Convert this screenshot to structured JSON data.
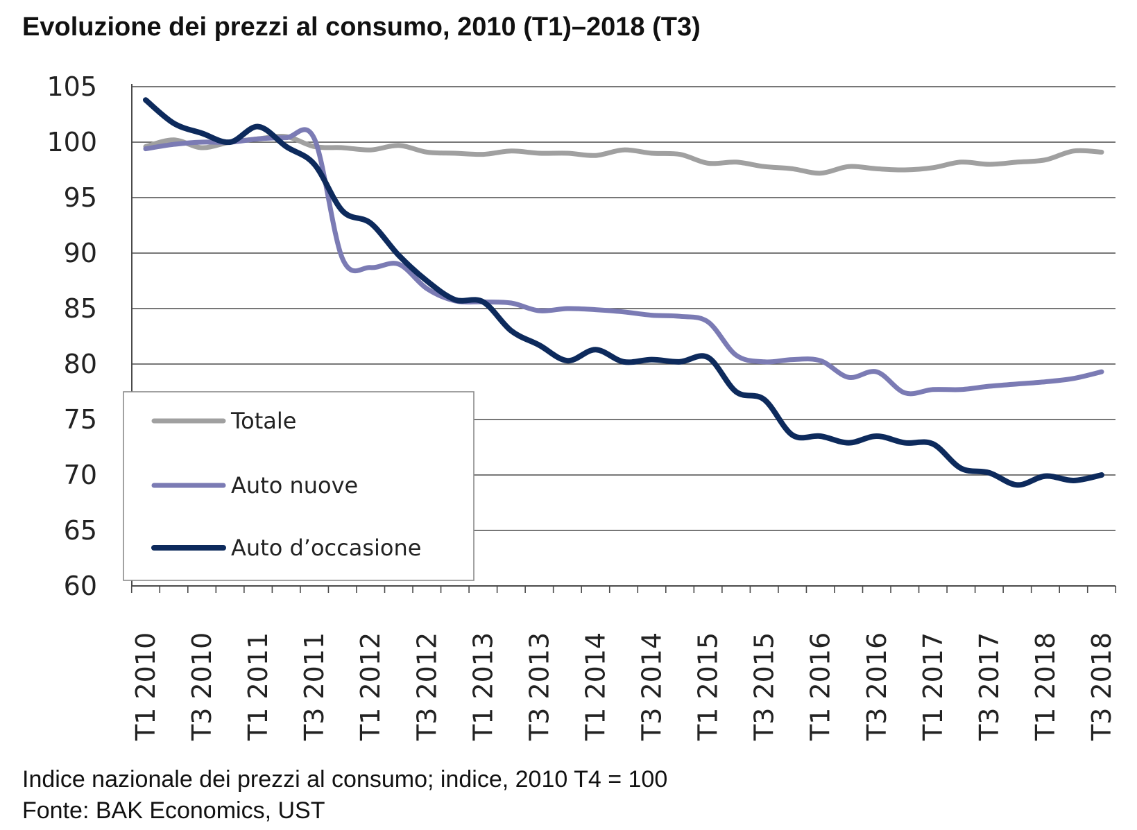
{
  "chart_data": {
    "type": "line",
    "title": "Evoluzione dei prezzi al consumo, 2010 (T1)–2018 (T3)",
    "xlabel": "",
    "ylabel": "",
    "ylim": [
      60,
      105
    ],
    "yticks": [
      60,
      65,
      70,
      75,
      80,
      85,
      90,
      95,
      100,
      105
    ],
    "x": [
      "T1 2010",
      "T2 2010",
      "T3 2010",
      "T4 2010",
      "T1 2011",
      "T2 2011",
      "T3 2011",
      "T4 2011",
      "T1 2012",
      "T2 2012",
      "T3 2012",
      "T4 2012",
      "T1 2013",
      "T2 2013",
      "T3 2013",
      "T4 2013",
      "T1 2014",
      "T2 2014",
      "T3 2014",
      "T4 2014",
      "T1 2015",
      "T2 2015",
      "T3 2015",
      "T4 2015",
      "T1 2016",
      "T2 2016",
      "T3 2016",
      "T4 2016",
      "T1 2017",
      "T2 2017",
      "T3 2017",
      "T4 2017",
      "T1 2018",
      "T2 2018",
      "T3 2018"
    ],
    "x_tick_labels": [
      "T1 2010",
      "T3 2010",
      "T1 2011",
      "T3 2011",
      "T1 2012",
      "T3 2012",
      "T1 2013",
      "T3 2013",
      "T1 2014",
      "T3 2014",
      "T1 2015",
      "T3 2015",
      "T1 2016",
      "T3 2016",
      "T1 2017",
      "T3 2017",
      "T1 2018",
      "T3 2018"
    ],
    "grid": true,
    "legend_position": "bottom-left",
    "series": [
      {
        "name": "Totale",
        "color": "#a0a0a0",
        "values": [
          99.6,
          100.2,
          99.5,
          100.0,
          100.3,
          100.5,
          99.6,
          99.5,
          99.3,
          99.7,
          99.1,
          99.0,
          98.9,
          99.2,
          99.0,
          99.0,
          98.8,
          99.3,
          99.0,
          98.9,
          98.1,
          98.2,
          97.8,
          97.6,
          97.2,
          97.8,
          97.6,
          97.5,
          97.7,
          98.2,
          98.0,
          98.2,
          98.4,
          99.2,
          99.1
        ]
      },
      {
        "name": "Auto nuove",
        "color": "#7b7bb4",
        "values": [
          99.4,
          99.8,
          100.0,
          100.0,
          100.3,
          100.4,
          100.3,
          89.5,
          88.7,
          89.0,
          86.8,
          85.7,
          85.6,
          85.5,
          84.8,
          85.0,
          84.9,
          84.7,
          84.4,
          84.3,
          83.8,
          80.8,
          80.2,
          80.4,
          80.3,
          78.8,
          79.3,
          77.4,
          77.7,
          77.7,
          78.0,
          78.2,
          78.4,
          78.7,
          79.3
        ]
      },
      {
        "name": "Auto d’occasione",
        "color": "#0d2a5c",
        "values": [
          103.8,
          101.7,
          100.8,
          100.0,
          101.4,
          99.6,
          98.0,
          93.8,
          92.7,
          89.8,
          87.5,
          85.8,
          85.6,
          83.0,
          81.7,
          80.3,
          81.3,
          80.2,
          80.4,
          80.2,
          80.6,
          77.5,
          76.8,
          73.6,
          73.5,
          72.9,
          73.5,
          72.9,
          72.8,
          70.6,
          70.2,
          69.1,
          69.9,
          69.5,
          70.0
        ]
      }
    ]
  },
  "notes": {
    "line1": "Indice nazionale dei prezzi al consumo; indice, 2010 T4 = 100",
    "line2": "Fonte: BAK Economics, UST"
  }
}
